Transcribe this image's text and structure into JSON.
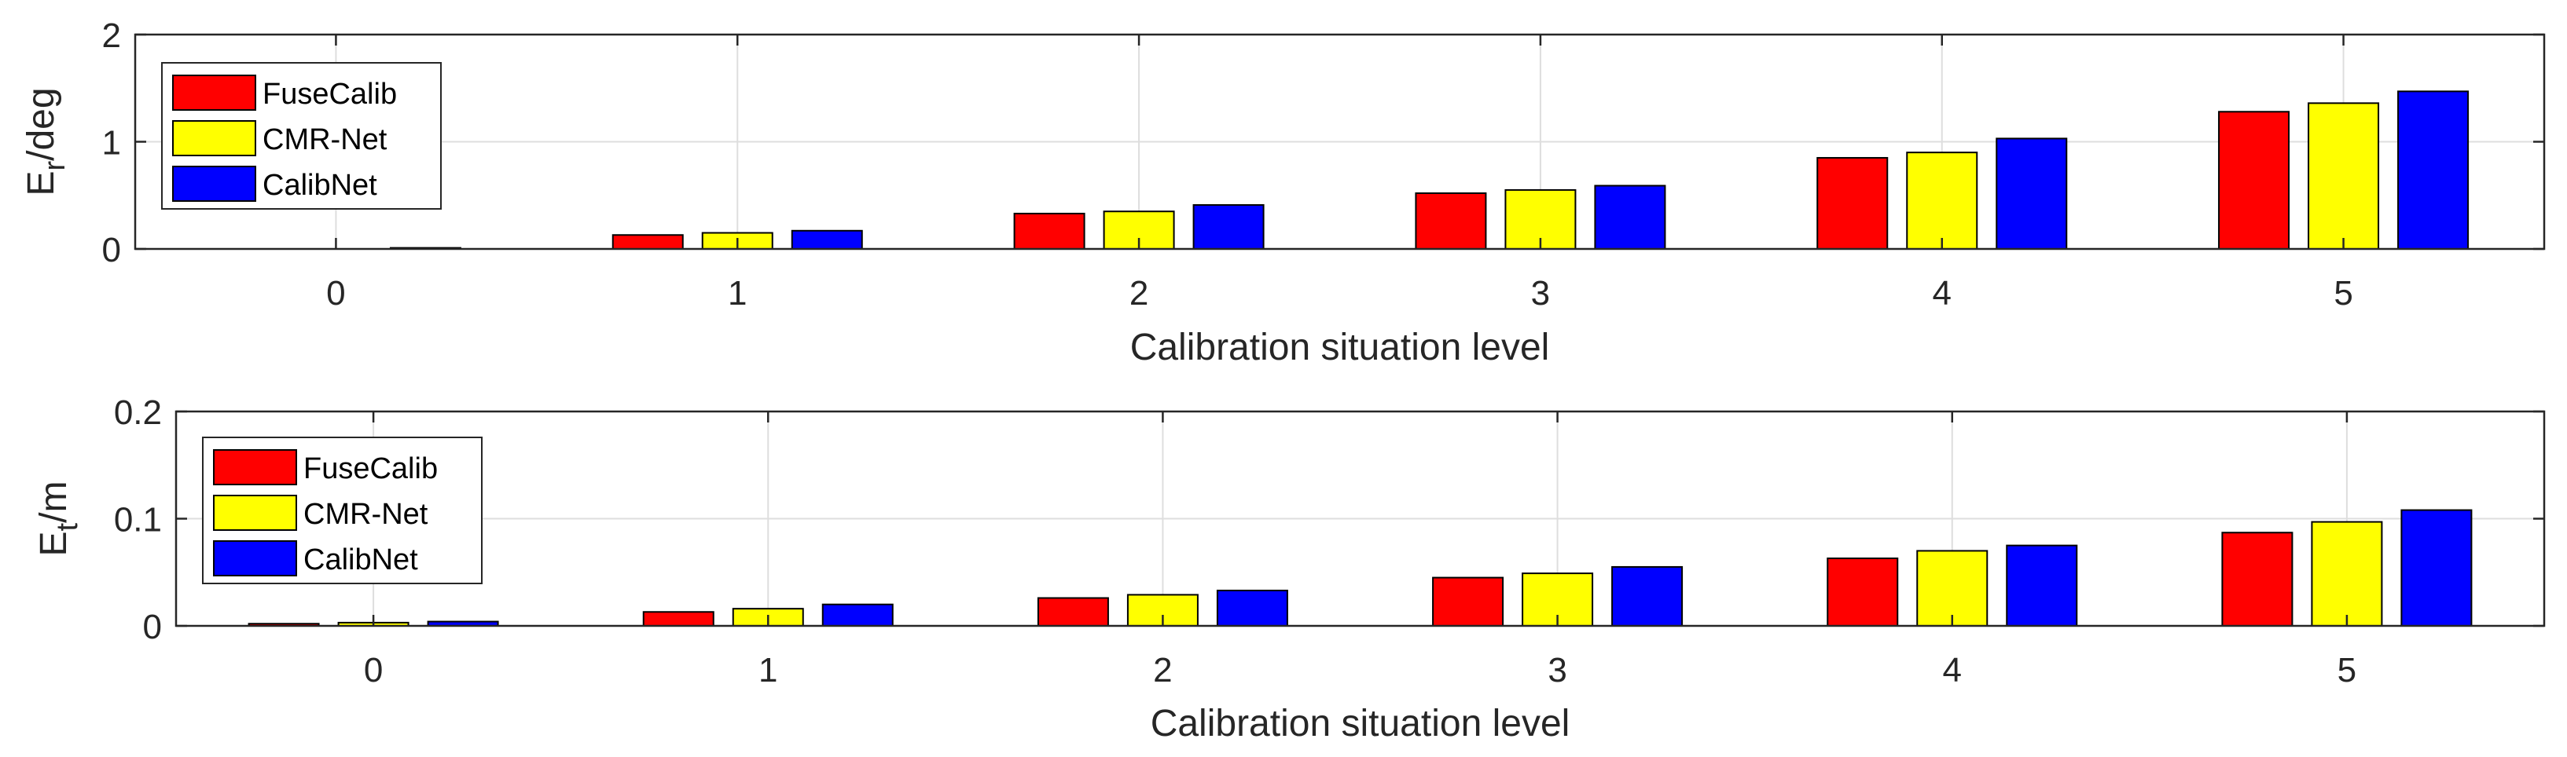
{
  "colors": {
    "FuseCalib": "#ff0000",
    "CMR-Net": "#ffff00",
    "CalibNet": "#0000ff",
    "axis": "#262626"
  },
  "chart_data": [
    {
      "type": "bar",
      "xlabel": "Calibration situation level",
      "ylabel_main": "E",
      "ylabel_sub": "r",
      "ylabel_rest": "/deg",
      "categories": [
        "0",
        "1",
        "2",
        "3",
        "4",
        "5"
      ],
      "ylim": [
        0,
        2
      ],
      "yticks": [
        "0",
        "1",
        "2"
      ],
      "grid": true,
      "legend": "top-left",
      "series": [
        {
          "name": "FuseCalib",
          "values": [
            0.0,
            0.13,
            0.33,
            0.52,
            0.85,
            1.28
          ]
        },
        {
          "name": "CMR-Net",
          "values": [
            0.0,
            0.15,
            0.35,
            0.55,
            0.9,
            1.36
          ]
        },
        {
          "name": "CalibNet",
          "values": [
            0.01,
            0.17,
            0.41,
            0.59,
            1.03,
            1.47
          ]
        }
      ]
    },
    {
      "type": "bar",
      "xlabel": "Calibration situation level",
      "ylabel_main": "E",
      "ylabel_sub": "t",
      "ylabel_rest": "/m",
      "categories": [
        "0",
        "1",
        "2",
        "3",
        "4",
        "5"
      ],
      "ylim": [
        0,
        0.2
      ],
      "yticks": [
        "0",
        "0.1",
        "0.2"
      ],
      "grid": true,
      "legend": "top-left",
      "series": [
        {
          "name": "FuseCalib",
          "values": [
            0.002,
            0.013,
            0.026,
            0.045,
            0.063,
            0.087
          ]
        },
        {
          "name": "CMR-Net",
          "values": [
            0.003,
            0.016,
            0.029,
            0.049,
            0.07,
            0.097
          ]
        },
        {
          "name": "CalibNet",
          "values": [
            0.004,
            0.02,
            0.033,
            0.055,
            0.075,
            0.108
          ]
        }
      ]
    }
  ]
}
